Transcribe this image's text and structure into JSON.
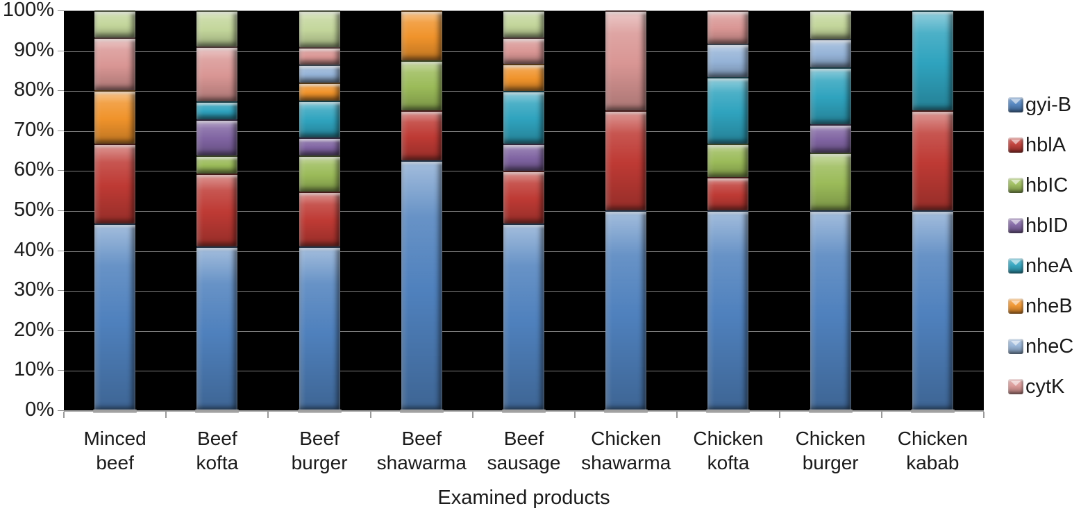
{
  "figure": {
    "background": "#ffffff",
    "plot_background": "#000000",
    "gridline_color": "#7f7f7f",
    "axis_color": "#9a9a9a",
    "text_color": "#1a1a1a"
  },
  "chart_data": {
    "type": "bar",
    "stacked": true,
    "percent": true,
    "title": "",
    "xlabel": "Examined products",
    "ylabel": "",
    "ylim": [
      0,
      100
    ],
    "grid": true,
    "legend_position": "right",
    "y_tick_labels": [
      "100%",
      "90%",
      "80%",
      "70%",
      "60%",
      "50%",
      "40%",
      "30%",
      "20%",
      "10%",
      "0%"
    ],
    "categories": [
      "Minced\nbeef",
      "Beef\nkofta",
      "Beef\nburger",
      "Beef\nshawarma",
      "Beef\nsausage",
      "Chicken\nshawarma",
      "Chicken\nkofta",
      "Chicken\nburger",
      "Chicken\nkabab"
    ],
    "series": [
      {
        "name": "gyi-B",
        "color": "#4F81BD",
        "in_legend": true,
        "values": [
          46.7,
          40.9,
          40.9,
          62.5,
          46.7,
          50.0,
          50.0,
          50.0,
          50.0
        ]
      },
      {
        "name": "hblA",
        "color": "#BE3A34",
        "in_legend": true,
        "values": [
          20.0,
          18.2,
          13.6,
          12.5,
          13.3,
          25.0,
          8.3,
          0.0,
          25.0
        ]
      },
      {
        "name": "hbIC",
        "color": "#9BBB59",
        "in_legend": true,
        "values": [
          0.0,
          4.5,
          9.1,
          12.5,
          0.0,
          0.0,
          8.3,
          14.3,
          0.0
        ]
      },
      {
        "name": "hbID",
        "color": "#8064A2",
        "in_legend": true,
        "values": [
          0.0,
          9.1,
          4.5,
          0.0,
          6.7,
          0.0,
          0.0,
          7.1,
          0.0
        ]
      },
      {
        "name": "nheA",
        "color": "#2FA3BE",
        "in_legend": true,
        "values": [
          0.0,
          4.5,
          9.1,
          0.0,
          13.3,
          0.0,
          16.7,
          14.3,
          25.0
        ]
      },
      {
        "name": "nheB",
        "color": "#F0932B",
        "in_legend": true,
        "values": [
          13.3,
          0.0,
          4.5,
          12.5,
          6.7,
          0.0,
          0.0,
          0.0,
          0.0
        ]
      },
      {
        "name": "nheC",
        "color": "#95B3D7",
        "in_legend": true,
        "values": [
          0.0,
          0.0,
          4.5,
          0.0,
          0.0,
          0.0,
          8.3,
          7.1,
          0.0
        ]
      },
      {
        "name": "cytK",
        "color": "#D99694",
        "in_legend": true,
        "values": [
          13.3,
          13.6,
          4.5,
          0.0,
          6.7,
          25.0,
          8.3,
          0.0,
          0.0
        ]
      },
      {
        "name": "",
        "color": "#C3D69B",
        "in_legend": false,
        "values": [
          6.7,
          9.1,
          9.1,
          0.0,
          6.7,
          0.0,
          0.0,
          7.1,
          0.0
        ]
      }
    ]
  }
}
